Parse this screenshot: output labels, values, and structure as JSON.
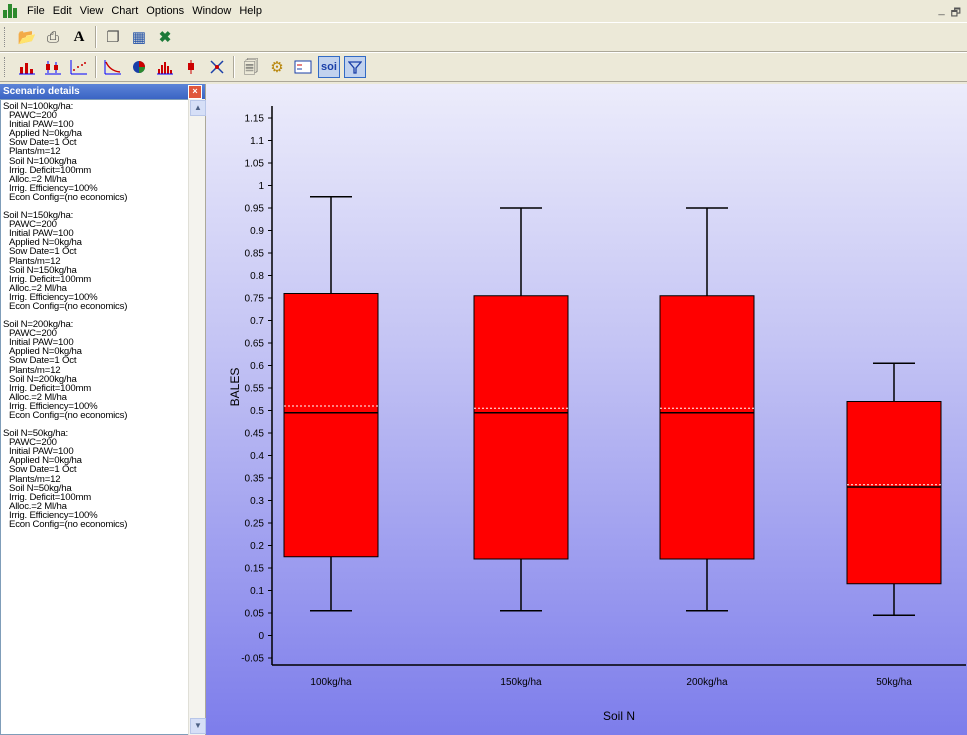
{
  "menu": {
    "items": [
      "File",
      "Edit",
      "View",
      "Chart",
      "Options",
      "Window",
      "Help"
    ]
  },
  "window_controls": {
    "minimize": "_",
    "restore": "🗗"
  },
  "toolbar1": {
    "icons": [
      "open-folder-icon",
      "print-icon",
      "font-icon",
      "copy-icon",
      "copy-data-icon",
      "excel-icon"
    ]
  },
  "toolbar2": {
    "icons": [
      "bar-chart-icon",
      "box-plot-icon",
      "scatter-icon",
      "exceedance-icon",
      "pie-icon",
      "histogram-icon",
      "candlestick-icon",
      "xy-icon",
      "properties-icon",
      "series-config-icon",
      "legend-icon"
    ],
    "soi_label": "soi",
    "filter_icon": "filter-icon"
  },
  "panel": {
    "title": "Scenario details",
    "close": "×",
    "scenarios": [
      {
        "title": "Soil N=100kg/ha:",
        "lines": [
          "PAWC=200",
          "Initial PAW=100",
          "Applied N=0kg/ha",
          "Sow Date=1 Oct",
          "Plants/m=12",
          "Soil N=100kg/ha",
          "Irrig. Deficit=100mm",
          "Alloc.=2 Ml/ha",
          "Irrig. Efficiency=100%",
          "Econ Config=(no economics)"
        ]
      },
      {
        "title": "Soil N=150kg/ha:",
        "lines": [
          "PAWC=200",
          "Initial PAW=100",
          "Applied N=0kg/ha",
          "Sow Date=1 Oct",
          "Plants/m=12",
          "Soil N=150kg/ha",
          "Irrig. Deficit=100mm",
          "Alloc.=2 Ml/ha",
          "Irrig. Efficiency=100%",
          "Econ Config=(no economics)"
        ]
      },
      {
        "title": "Soil N=200kg/ha:",
        "lines": [
          "PAWC=200",
          "Initial PAW=100",
          "Applied N=0kg/ha",
          "Sow Date=1 Oct",
          "Plants/m=12",
          "Soil N=200kg/ha",
          "Irrig. Deficit=100mm",
          "Alloc.=2 Ml/ha",
          "Irrig. Efficiency=100%",
          "Econ Config=(no economics)"
        ]
      },
      {
        "title": "Soil N=50kg/ha:",
        "lines": [
          "PAWC=200",
          "Initial PAW=100",
          "Applied N=0kg/ha",
          "Sow Date=1 Oct",
          "Plants/m=12",
          "Soil N=50kg/ha",
          "Irrig. Deficit=100mm",
          "Alloc.=2 Ml/ha",
          "Irrig. Efficiency=100%",
          "Econ Config=(no economics)"
        ]
      }
    ]
  },
  "chart_data": {
    "type": "box",
    "xlabel": "Soil N",
    "ylabel": "BALES",
    "ylim": [
      -0.05,
      1.15
    ],
    "yticks": [
      "1.15",
      "1.1",
      "1.05",
      "1",
      "0.95",
      "0.9",
      "0.85",
      "0.8",
      "0.75",
      "0.7",
      "0.65",
      "0.6",
      "0.55",
      "0.5",
      "0.45",
      "0.4",
      "0.35",
      "0.3",
      "0.25",
      "0.2",
      "0.15",
      "0.1",
      "0.05",
      "0",
      "-0.05"
    ],
    "categories": [
      "100kg/ha",
      "150kg/ha",
      "200kg/ha",
      "50kg/ha"
    ],
    "boxes": [
      {
        "category": "100kg/ha",
        "min": 0.055,
        "q1": 0.175,
        "median": 0.495,
        "mean": 0.51,
        "q3": 0.76,
        "max": 0.975
      },
      {
        "category": "150kg/ha",
        "min": 0.055,
        "q1": 0.17,
        "median": 0.495,
        "mean": 0.505,
        "q3": 0.755,
        "max": 0.95
      },
      {
        "category": "200kg/ha",
        "min": 0.055,
        "q1": 0.17,
        "median": 0.495,
        "mean": 0.505,
        "q3": 0.755,
        "max": 0.95
      },
      {
        "category": "50kg/ha",
        "min": 0.045,
        "q1": 0.115,
        "median": 0.33,
        "mean": 0.335,
        "q3": 0.52,
        "max": 0.605
      }
    ],
    "box_color": "#ff0000",
    "background_top": "#ececfb",
    "background_bottom": "#7d7deb",
    "grid": false,
    "legend": "none"
  }
}
